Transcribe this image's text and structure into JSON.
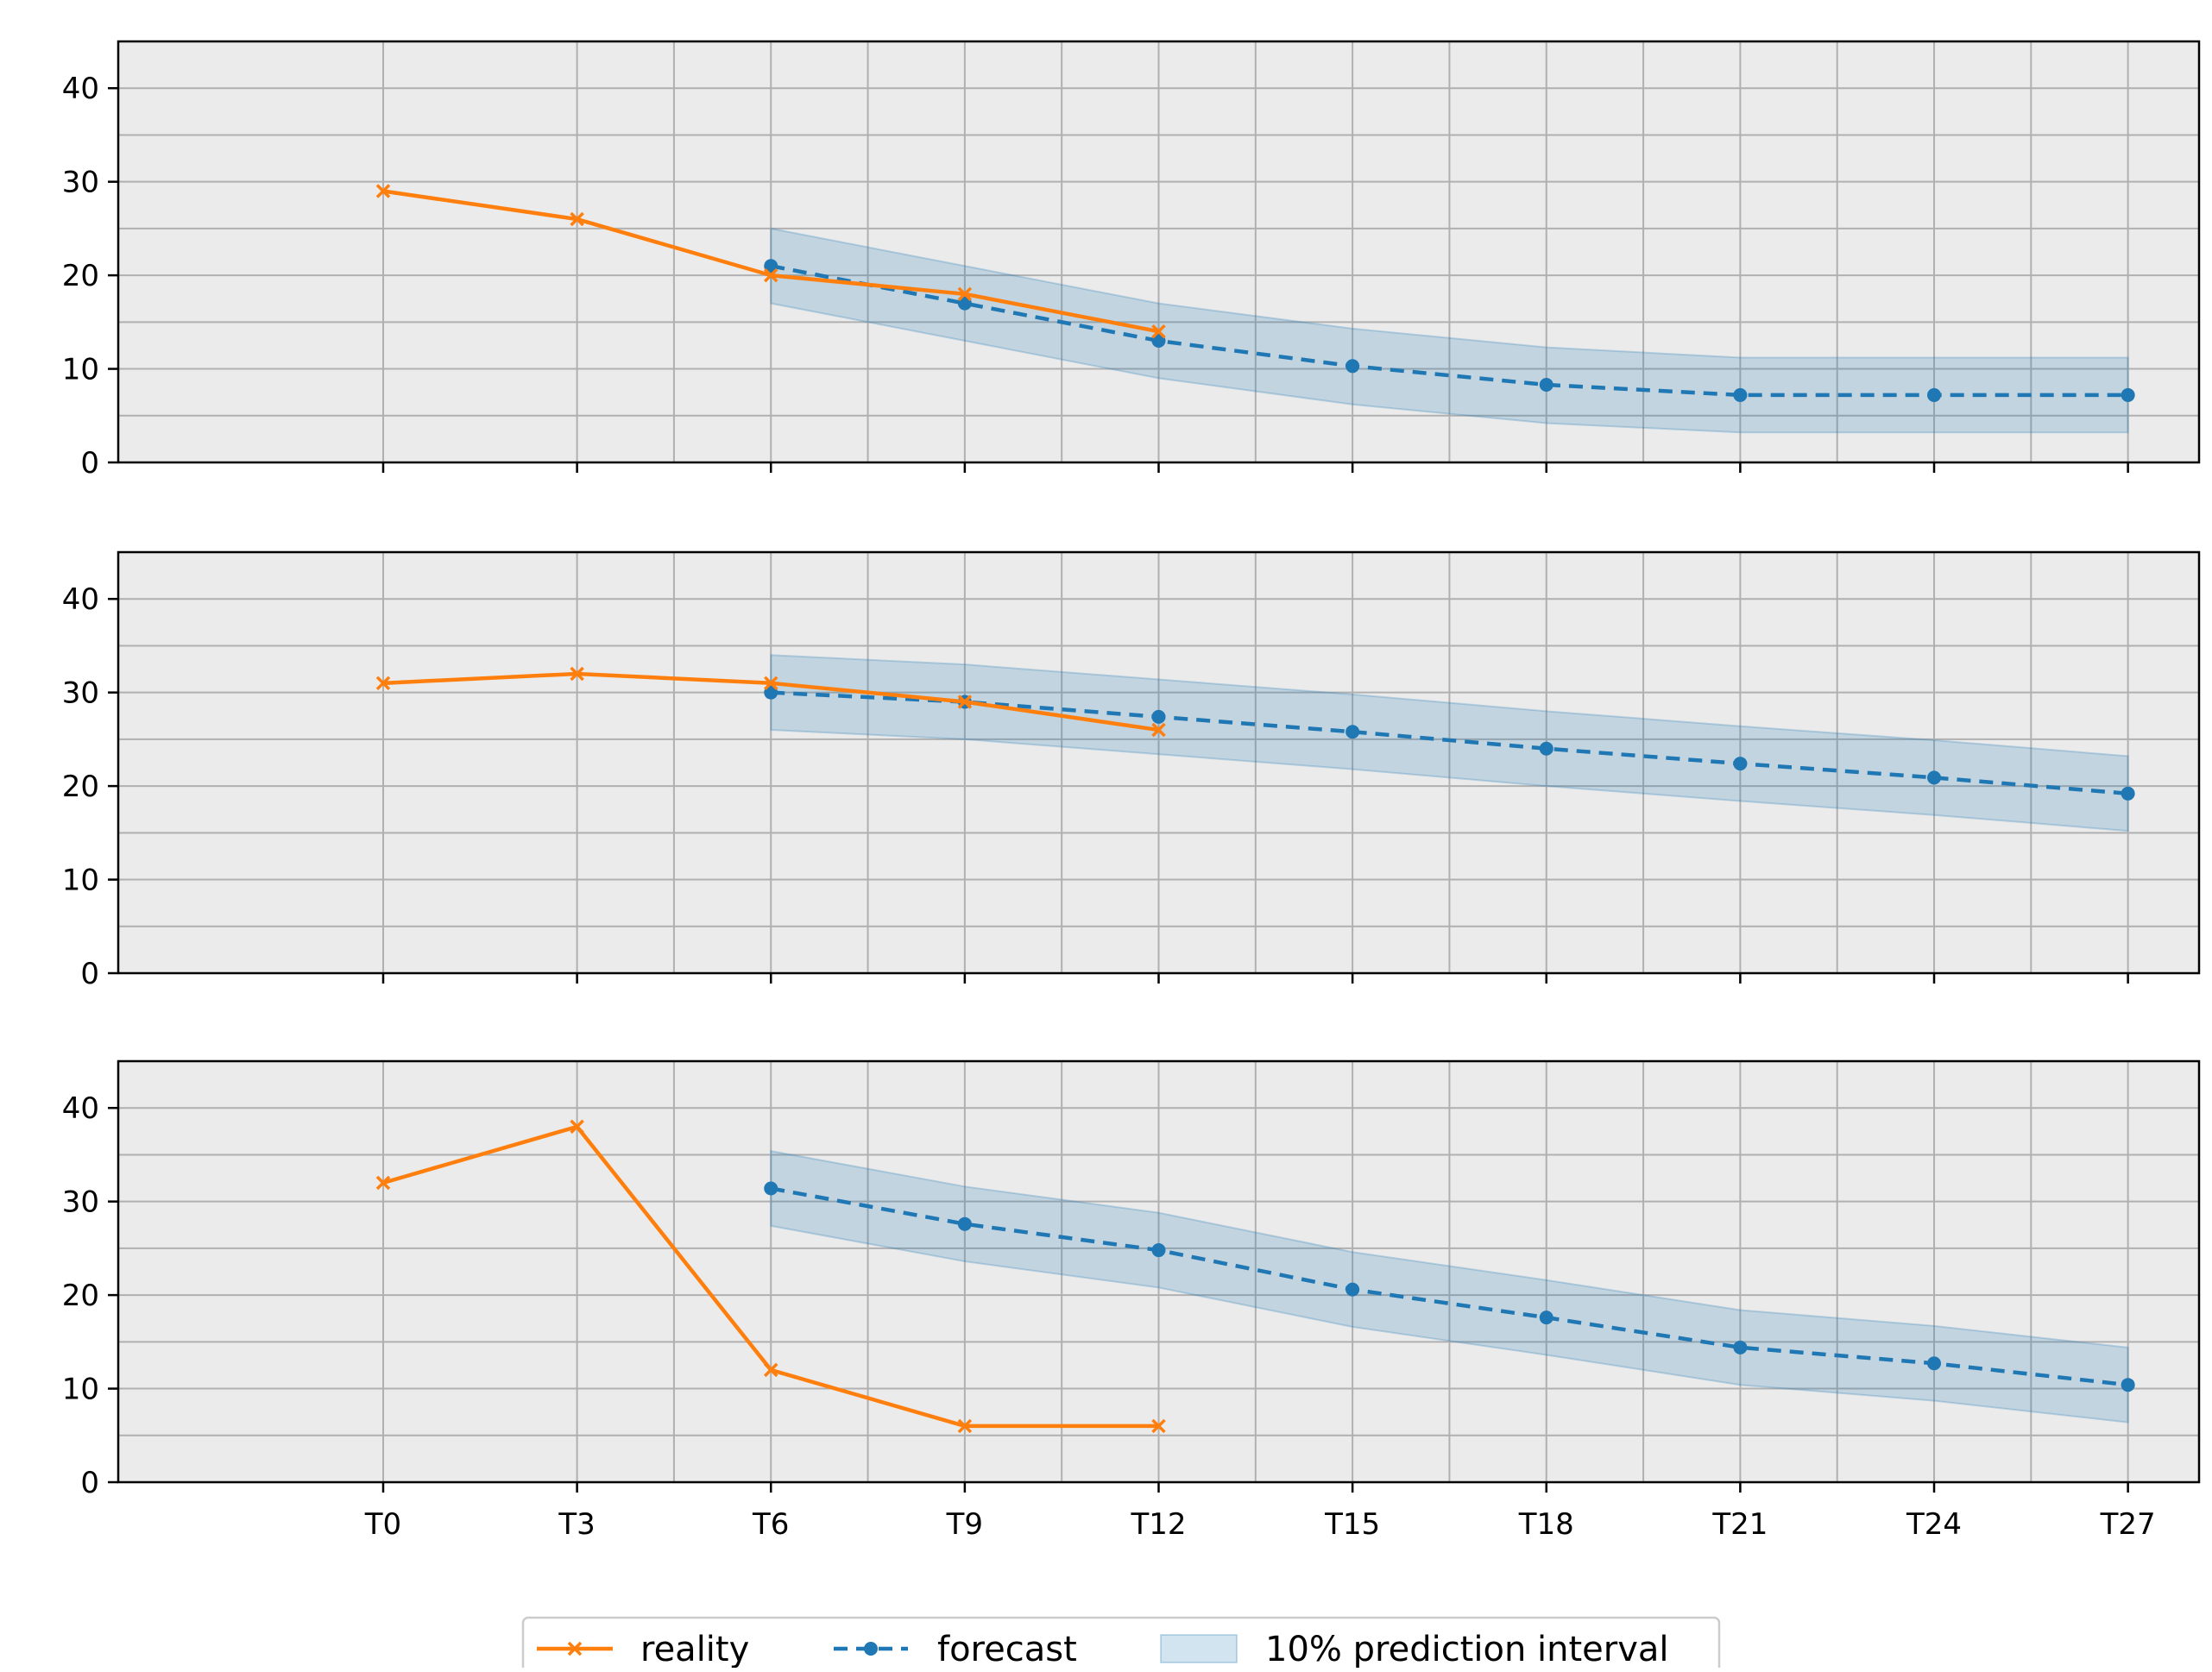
{
  "chart_data": {
    "type": "line",
    "shared_x_ticks": [
      "T0",
      "T3",
      "T6",
      "T9",
      "T12",
      "T15",
      "T18",
      "T21",
      "T24",
      "T27"
    ],
    "ylim": [
      0,
      45
    ],
    "y_ticks": [
      0,
      10,
      20,
      30,
      40
    ],
    "grid": true,
    "legend": {
      "placement": "bottom-center",
      "entries": [
        {
          "label": "reality",
          "style": "line-x-marker",
          "color": "#ff7f0e"
        },
        {
          "label": "forecast",
          "style": "dashed-dot-marker",
          "color": "#1f77b4"
        },
        {
          "label": "10% prediction interval",
          "style": "band",
          "color": "#1f77b4"
        }
      ]
    },
    "panels": [
      {
        "reality": {
          "x": [
            "T0",
            "T3",
            "T6",
            "T9",
            "T12"
          ],
          "y": [
            29,
            26,
            20,
            18,
            14
          ]
        },
        "forecast": {
          "x": [
            "T6",
            "T9",
            "T12",
            "T15",
            "T18",
            "T21",
            "T24",
            "T27"
          ],
          "y": [
            21,
            17,
            13,
            10.3,
            8.3,
            7.2,
            7.2,
            7.2
          ]
        },
        "interval": {
          "x": [
            6,
            9,
            12,
            15,
            18,
            21,
            24,
            27
          ],
          "lower": [
            17,
            13,
            9,
            6.2,
            4.2,
            3.2,
            3.2,
            3.2
          ],
          "upper": [
            25,
            21,
            17,
            14.3,
            12.3,
            11.2,
            11.2,
            11.2
          ]
        }
      },
      {
        "reality": {
          "x": [
            "T0",
            "T3",
            "T6",
            "T9",
            "T12"
          ],
          "y": [
            31,
            32,
            31,
            29,
            26
          ]
        },
        "forecast": {
          "x": [
            "T6",
            "T9",
            "T12",
            "T15",
            "T18",
            "T21",
            "T24",
            "T27"
          ],
          "y": [
            30,
            29,
            27.4,
            25.8,
            24,
            22.4,
            20.9,
            19.2
          ]
        },
        "interval": {
          "x": [
            6,
            9,
            12,
            15,
            18,
            21,
            24,
            27
          ],
          "lower": [
            26,
            25,
            23.4,
            21.8,
            20,
            18.4,
            16.9,
            15.2
          ],
          "upper": [
            34,
            33,
            31.4,
            29.8,
            28,
            26.4,
            24.9,
            23.2
          ]
        }
      },
      {
        "reality": {
          "x": [
            "T0",
            "T3",
            "T6",
            "T9",
            "T12"
          ],
          "y": [
            32,
            38,
            12,
            6,
            6
          ]
        },
        "forecast": {
          "x": [
            "T6",
            "T9",
            "T12",
            "T15",
            "T18",
            "T21",
            "T24",
            "T27"
          ],
          "y": [
            31.4,
            27.6,
            24.8,
            20.6,
            17.6,
            14.4,
            12.7,
            10.4
          ]
        },
        "interval": {
          "x": [
            6,
            9,
            12,
            15,
            18,
            21,
            24,
            27
          ],
          "lower": [
            27.4,
            23.6,
            20.8,
            16.6,
            13.6,
            10.4,
            8.7,
            6.4
          ],
          "upper": [
            35.4,
            31.6,
            28.8,
            24.6,
            21.6,
            18.4,
            16.7,
            14.4
          ]
        }
      }
    ]
  }
}
